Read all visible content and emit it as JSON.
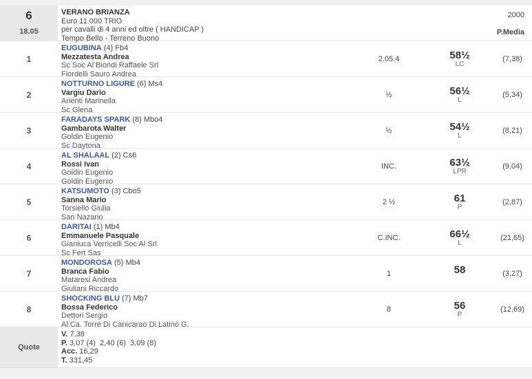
{
  "header": {
    "race_number": "6",
    "race_time": "18.05",
    "title": "VERANO BRIANZA",
    "prize": "Euro 11.000 TRIO",
    "conditions": "per cavalli di 4 anni ed oltre ( HANDICAP )",
    "track_conditions": "Tempo Bello - Terreno Buono",
    "distance": "2000",
    "pmedia_label": "P.Media"
  },
  "rows": [
    {
      "pos": "1",
      "horse": "EUGUBINA",
      "horse_info": "(4) Fb4",
      "jockey": "Mezzatesta Andrea",
      "owner": "Sc Soc Al Biondi Raffaele Srl",
      "trainer": "Fiordelli Sauro Andrea",
      "distance": "2.05.4",
      "weight": "58½",
      "code": "LC",
      "odds": "(7,38)"
    },
    {
      "pos": "2",
      "horse": "NOTTURNO LIGURE",
      "horse_info": "(6) Ms4",
      "jockey": "Vargiu Dario",
      "owner": "Arienti Marinella",
      "trainer": "Sc Glena",
      "distance": "½",
      "weight": "56½",
      "code": "L",
      "odds": "(5,34)"
    },
    {
      "pos": "3",
      "horse": "FARADAYS SPARK",
      "horse_info": "(8) Mbo4",
      "jockey": "Gambarota Walter",
      "owner": "Goldin Eugenio",
      "trainer": "Sc Daytona",
      "distance": "½",
      "weight": "54½",
      "code": "L",
      "odds": "(8,21)"
    },
    {
      "pos": "4",
      "horse": "AL SHALAAL",
      "horse_info": "(2) Cs6",
      "jockey": "Rossi Ivan",
      "owner": "Goldin Eugenio",
      "trainer": "Goldin Eugenio",
      "distance": "INC.",
      "weight": "63½",
      "code": "LPR",
      "odds": "(9,04)"
    },
    {
      "pos": "5",
      "horse": "KATSUMOTO",
      "horse_info": "(3) Cbo5",
      "jockey": "Sanna Mario",
      "owner": "Torsiello Giulia",
      "trainer": "San Nazario",
      "distance": "2 ½",
      "weight": "61",
      "code": "P",
      "odds": "(2,87)"
    },
    {
      "pos": "6",
      "horse": "DARITAI",
      "horse_info": "(1) Mb4",
      "jockey": "Emmanuele Pasquale",
      "owner": "Gianluca Verricelli Soc Al Srl",
      "trainer": "Sc Fert Sas",
      "distance": "C.INC.",
      "weight": "66½",
      "code": "L",
      "odds": "(21,65)"
    },
    {
      "pos": "7",
      "horse": "MONDOROSA",
      "horse_info": "(5) Mb4",
      "jockey": "Branca Fabio",
      "owner": "Mataresi Andrea",
      "trainer": "Giuliani Riccardo",
      "distance": "1",
      "weight": "58",
      "code": "",
      "odds": "(3,27)"
    },
    {
      "pos": "8",
      "horse": "SHOCKING BLU",
      "horse_info": "(7) Mb7",
      "jockey": "Bossa Federico",
      "owner": "Dettori Sergio",
      "trainer": "Al.Ca. Torre Di Canicarao Di Latino G.",
      "distance": "8",
      "weight": "56",
      "code": "P",
      "odds": "(12,69)"
    }
  ],
  "quote": {
    "label": "Quote",
    "lines": [
      {
        "label": "V.",
        "value": " 7,38"
      },
      {
        "label": "P.",
        "value": " 3,07 (4)  2,40 (6)  3,09 (8)"
      },
      {
        "label": "Acc.",
        "value": " 16,29"
      },
      {
        "label": "T.",
        "value": " 331,45"
      }
    ]
  },
  "colors": {
    "link_blue": "#3a58ad",
    "header_gray": "#e8e8e8",
    "page_bg": "#f1f1f1"
  }
}
